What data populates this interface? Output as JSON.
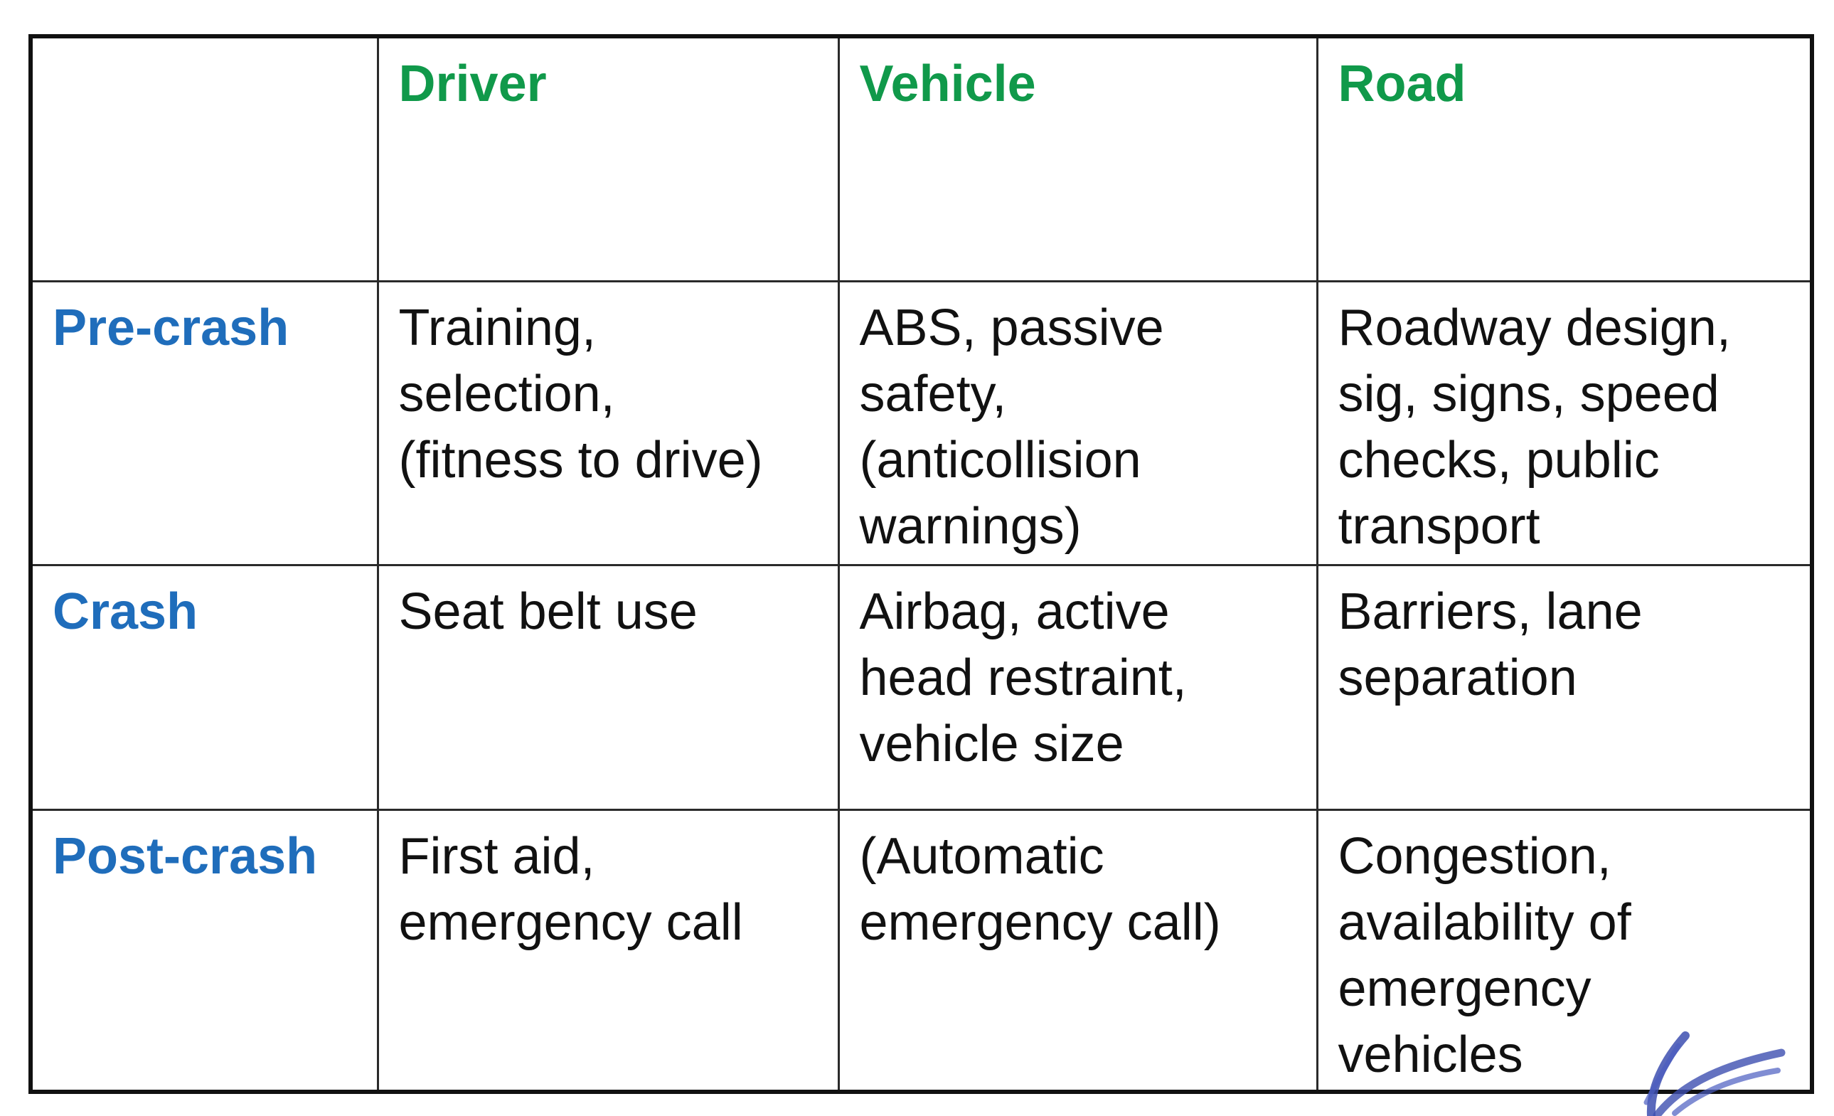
{
  "table": {
    "columns": [
      "",
      "Driver",
      "Vehicle",
      "Road"
    ],
    "rows": [
      {
        "phase": "Pre-crash",
        "driver": "Training,\nselection,\n(fitness to drive)",
        "vehicle": "ABS, passive\nsafety,\n(anticollision\nwarnings)",
        "road": "Roadway design,\nsig, signs, speed\nchecks, public\ntransport"
      },
      {
        "phase": "Crash",
        "driver": "Seat belt use",
        "vehicle": "Airbag, active\nhead restraint,\nvehicle size",
        "road": "Barriers, lane\nseparation"
      },
      {
        "phase": "Post-crash",
        "driver": "First aid,\nemergency call",
        "vehicle": "(Automatic\nemergency call)",
        "road": "Congestion,\navailability of\nemergency\nvehicles"
      }
    ]
  },
  "colors": {
    "column_header": "#10994a",
    "row_header": "#1f6dbb",
    "text": "#111111",
    "annotation_stroke": "#3d4fb0"
  }
}
